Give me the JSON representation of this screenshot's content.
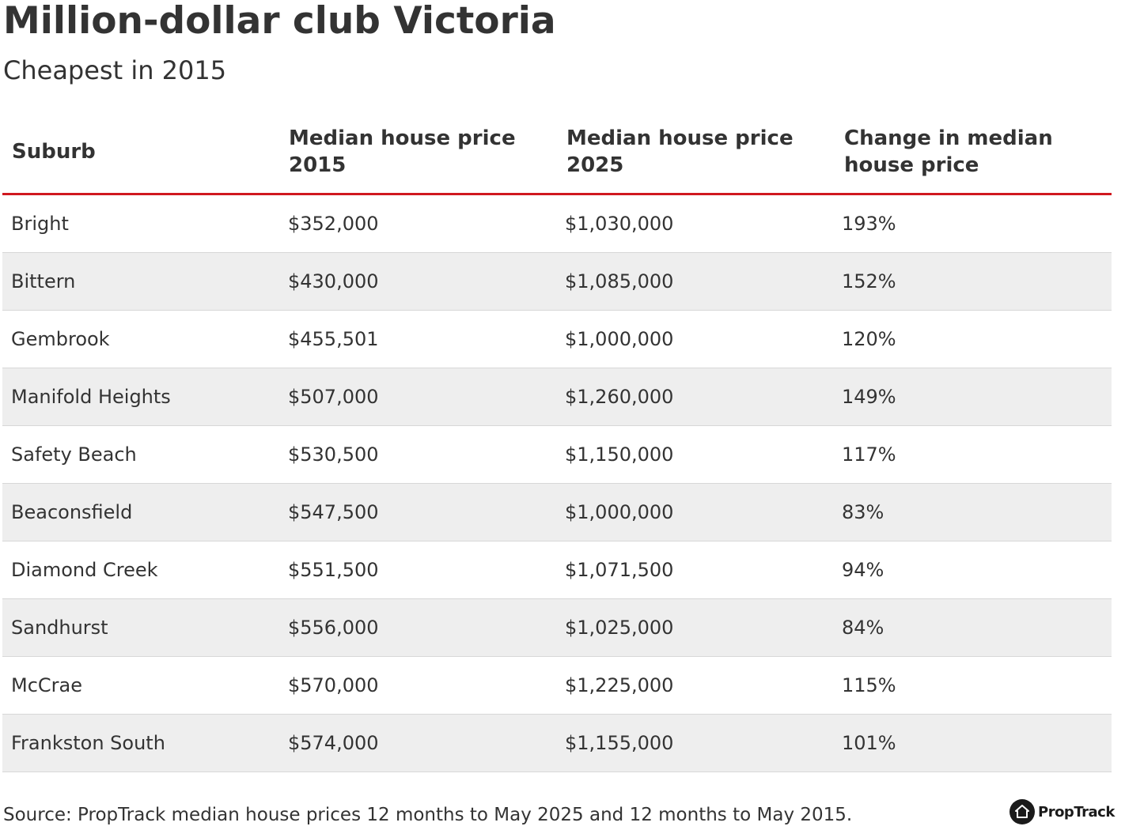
{
  "title": "Million-dollar club Victoria",
  "subtitle": "Cheapest in 2015",
  "source": "Source: PropTrack median house prices 12 months to May 2025 and 12 months to May 2015.",
  "logo": {
    "text": "PropTrack",
    "icon": "house-icon"
  },
  "colors": {
    "accent_rule": "#d0181f",
    "alt_row": "#eeeeee",
    "text": "#333333"
  },
  "chart_data": {
    "type": "table",
    "title": "Million-dollar club Victoria",
    "subtitle": "Cheapest in 2015",
    "columns": [
      "Suburb",
      "Median house price 2015",
      "Median house price 2025",
      "Change in median house price"
    ],
    "rows": [
      [
        "Bright",
        "$352,000",
        "$1,030,000",
        "193%"
      ],
      [
        "Bittern",
        "$430,000",
        "$1,085,000",
        "152%"
      ],
      [
        "Gembrook",
        "$455,501",
        "$1,000,000",
        "120%"
      ],
      [
        "Manifold Heights",
        "$507,000",
        "$1,260,000",
        "149%"
      ],
      [
        "Safety Beach",
        "$530,500",
        "$1,150,000",
        "117%"
      ],
      [
        "Beaconsfield",
        "$547,500",
        "$1,000,000",
        "83%"
      ],
      [
        "Diamond Creek",
        "$551,500",
        "$1,071,500",
        "94%"
      ],
      [
        "Sandhurst",
        "$556,000",
        "$1,025,000",
        "84%"
      ],
      [
        "McCrae",
        "$570,000",
        "$1,225,000",
        "115%"
      ],
      [
        "Frankston South",
        "$574,000",
        "$1,155,000",
        "101%"
      ]
    ]
  }
}
